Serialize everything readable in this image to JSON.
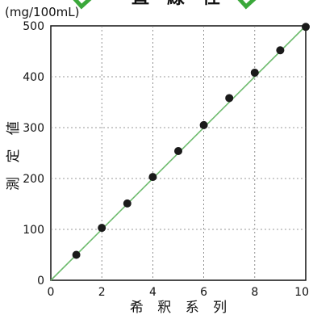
{
  "chart_data": {
    "type": "scatter",
    "title": "",
    "header_fragment": "直　線　性",
    "unit_label": "(mg/100mL)",
    "xlabel": "希 釈 系 列",
    "ylabel": "測 定 値",
    "xlim": [
      0,
      10
    ],
    "ylim": [
      0,
      500
    ],
    "x_ticks": [
      "0",
      "2",
      "4",
      "6",
      "8",
      "10"
    ],
    "y_ticks": [
      "0",
      "100",
      "200",
      "300",
      "400",
      "500"
    ],
    "grid": true,
    "grid_style": "dashed",
    "series": [
      {
        "marker_color": "#1a1a1a",
        "x": [
          1,
          2,
          3,
          4,
          5,
          6,
          7,
          8,
          9,
          10
        ],
        "y": [
          50,
          103,
          151,
          203,
          254,
          305,
          358,
          408,
          452,
          498
        ]
      }
    ],
    "reference_line": {
      "x": [
        0,
        10
      ],
      "y": [
        0,
        500
      ],
      "color": "#6dbb6d"
    },
    "header_accent_color": "#3aa83a"
  }
}
